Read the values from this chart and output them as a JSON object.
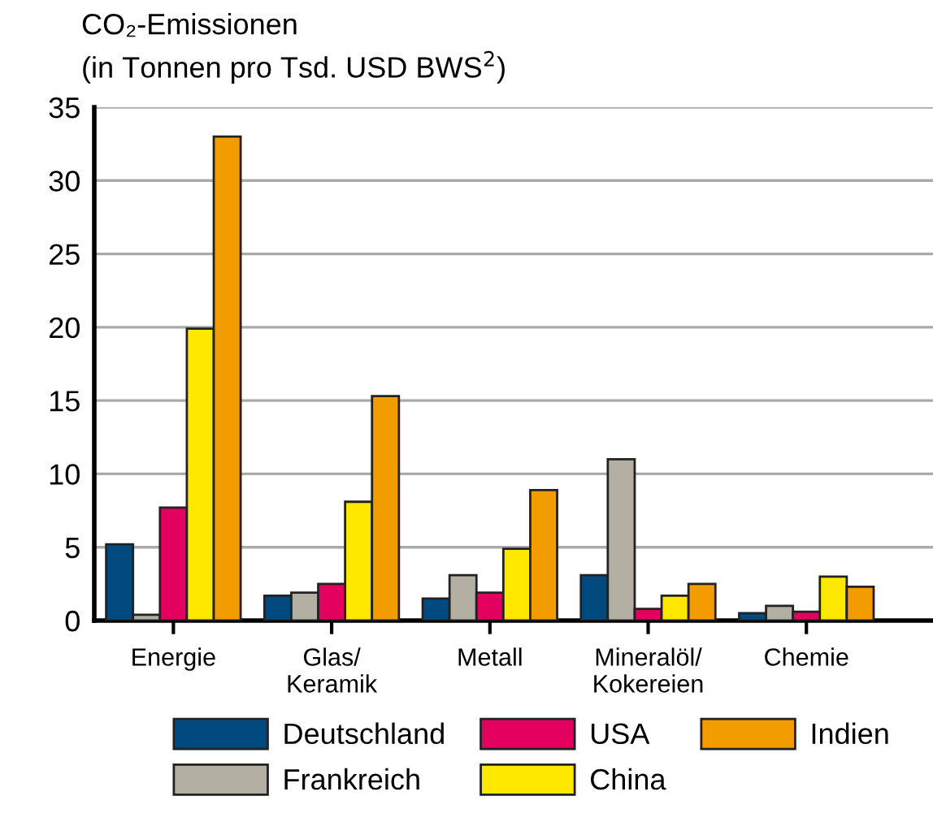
{
  "chart_data": {
    "type": "bar",
    "title": "CO₂-Emissionen\n(in Tonnen pro Tsd. USD BWS$^{2}$)",
    "categories": [
      "Energie",
      "Glas/\nKeramik",
      "Metall",
      "Mineralöl/\nKokereien",
      "Chemie"
    ],
    "series": [
      {
        "name": "Deutschland",
        "color": "#004a80",
        "values": [
          5.2,
          1.7,
          1.5,
          3.1,
          0.5
        ]
      },
      {
        "name": "Frankreich",
        "color": "#b3b0a3",
        "values": [
          0.4,
          1.9,
          3.1,
          11.0,
          1.0
        ]
      },
      {
        "name": "USA",
        "color": "#e3005f",
        "values": [
          7.7,
          2.5,
          1.9,
          0.8,
          0.6
        ]
      },
      {
        "name": "China",
        "color": "#ffe800",
        "values": [
          19.9,
          8.1,
          4.9,
          1.7,
          3.0
        ]
      },
      {
        "name": "Indien",
        "color": "#f39c00",
        "values": [
          33.0,
          15.3,
          8.9,
          2.5,
          2.3
        ]
      }
    ],
    "ylim": [
      0,
      35
    ],
    "yticks": [
      0,
      5,
      10,
      15,
      20,
      25,
      30,
      35
    ],
    "grid": "y",
    "legend": "bottom"
  }
}
